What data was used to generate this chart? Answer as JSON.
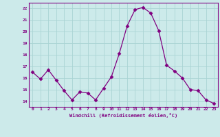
{
  "x": [
    0,
    1,
    2,
    3,
    4,
    5,
    6,
    7,
    8,
    9,
    10,
    11,
    12,
    13,
    14,
    15,
    16,
    17,
    18,
    19,
    20,
    21,
    22,
    23
  ],
  "y": [
    16.5,
    15.9,
    16.7,
    15.8,
    14.9,
    14.1,
    14.8,
    14.7,
    14.1,
    15.1,
    16.1,
    18.1,
    20.5,
    21.9,
    22.1,
    21.6,
    20.1,
    17.1,
    16.6,
    16.0,
    15.0,
    14.9,
    14.1,
    13.8
  ],
  "line_color": "#800080",
  "marker": "D",
  "marker_size": 2.5,
  "bg_color": "#cceaea",
  "grid_color": "#aad4d4",
  "xlabel": "Windchill (Refroidissement éolien,°C)",
  "xlabel_color": "#800080",
  "tick_color": "#800080",
  "ylim": [
    13.5,
    22.5
  ],
  "xlim": [
    -0.5,
    23.5
  ],
  "yticks": [
    14,
    15,
    16,
    17,
    18,
    19,
    20,
    21,
    22
  ],
  "xticks": [
    0,
    1,
    2,
    3,
    4,
    5,
    6,
    7,
    8,
    9,
    10,
    11,
    12,
    13,
    14,
    15,
    16,
    17,
    18,
    19,
    20,
    21,
    22,
    23
  ]
}
